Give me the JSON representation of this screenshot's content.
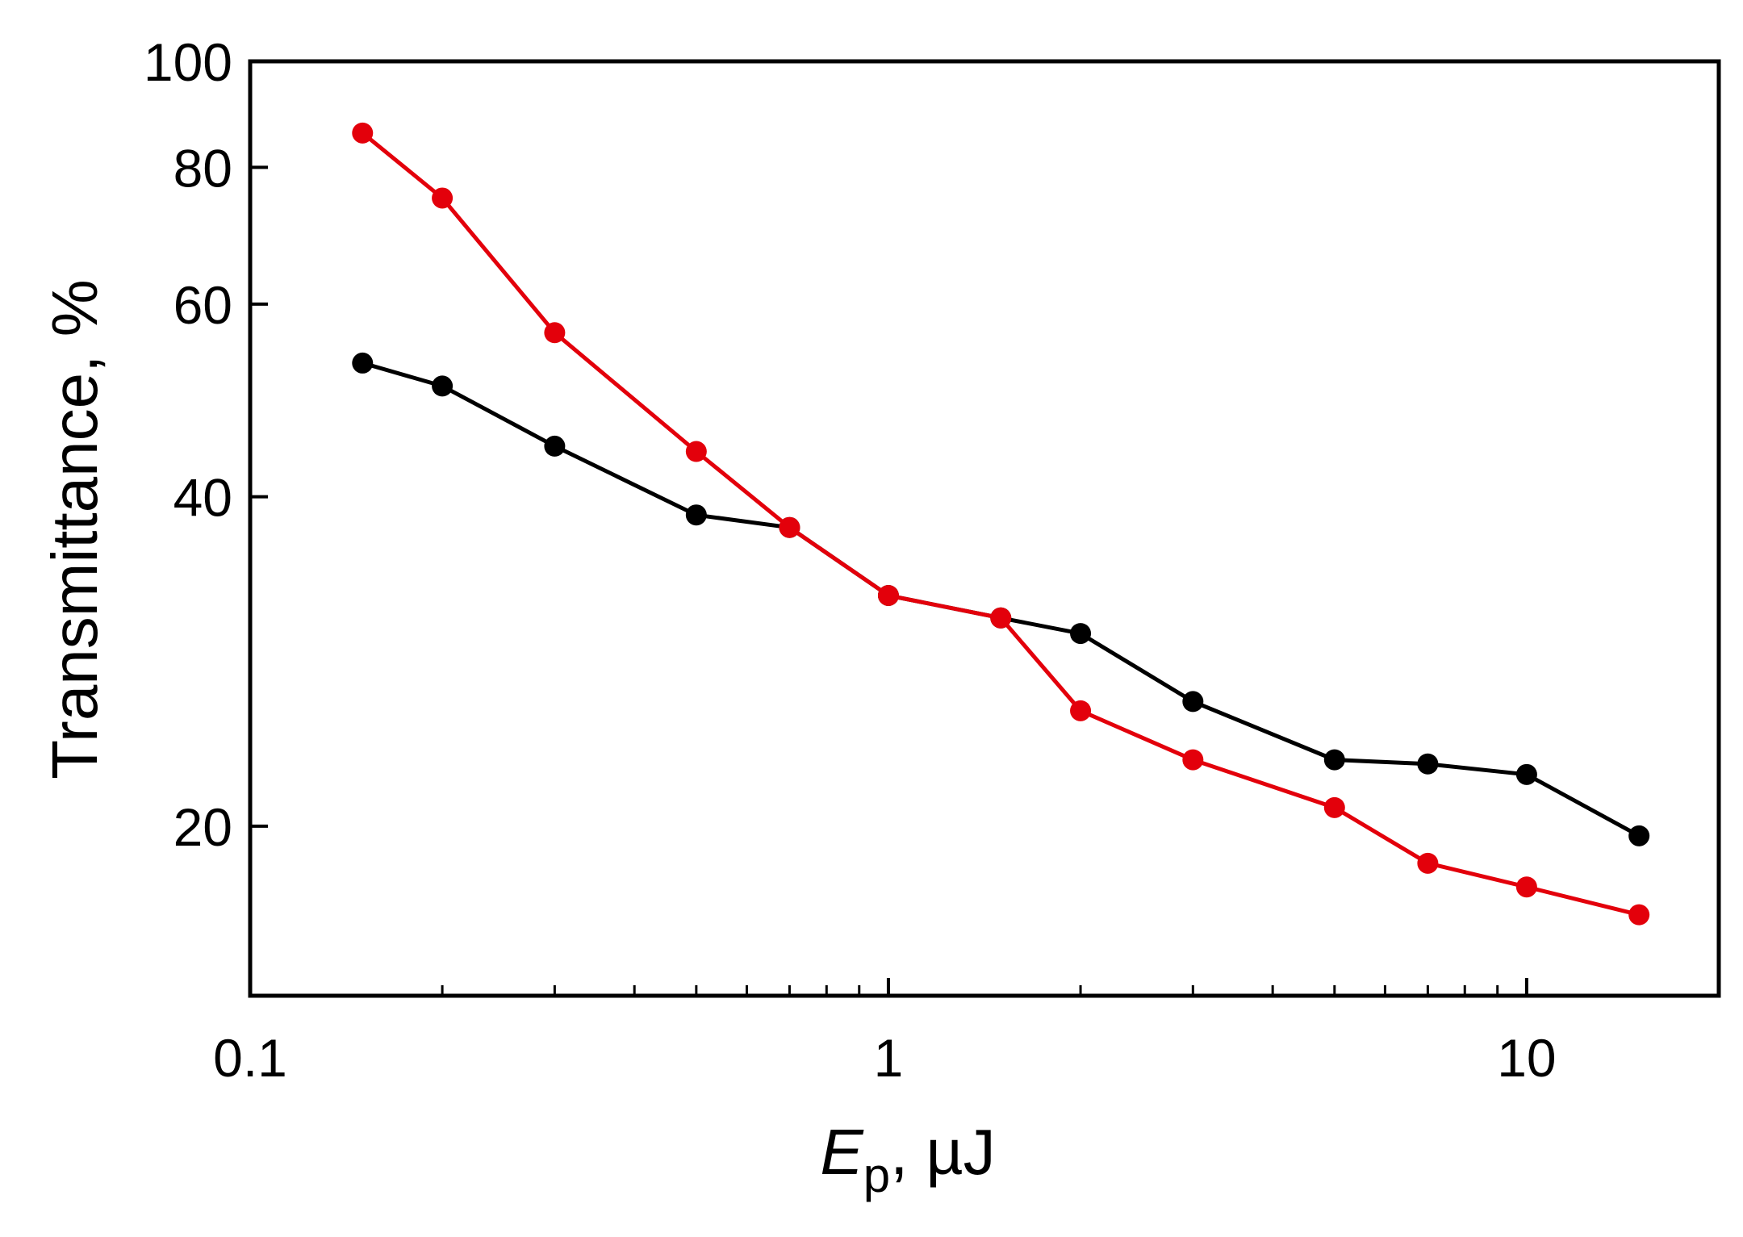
{
  "chart_data": {
    "type": "line",
    "title": "",
    "xlabel": {
      "symbol": "E",
      "subscript": "p",
      "unit": ", µJ"
    },
    "ylabel": "Transmittance, %",
    "xscale": "log",
    "yscale": "log",
    "xlim": [
      0.1,
      20
    ],
    "ylim": [
      14,
      100
    ],
    "x_ticks": [
      {
        "value": 0.1,
        "label": "0.1"
      },
      {
        "value": 1,
        "label": "1"
      },
      {
        "value": 10,
        "label": "10"
      }
    ],
    "y_ticks": [
      {
        "value": 20,
        "label": "20"
      },
      {
        "value": 40,
        "label": "40"
      },
      {
        "value": 60,
        "label": "60"
      },
      {
        "value": 80,
        "label": "80"
      },
      {
        "value": 100,
        "label": "100"
      }
    ],
    "grid": false,
    "legend": "none",
    "series": [
      {
        "color": "#000000",
        "x": [
          0.15,
          0.2,
          0.3,
          0.5,
          0.7,
          1,
          1.5,
          2,
          3,
          5,
          7,
          10,
          15
        ],
        "y": [
          53,
          50.5,
          44.5,
          38.5,
          37.5,
          32.5,
          31,
          30,
          26,
          23,
          22.8,
          22.3,
          19.6
        ]
      },
      {
        "color": "#e3000b",
        "x": [
          0.15,
          0.2,
          0.3,
          0.5,
          0.7,
          1,
          1.5,
          2,
          3,
          5,
          7,
          10,
          15
        ],
        "y": [
          86,
          75,
          56.5,
          44,
          37.5,
          32.5,
          31,
          25.5,
          23,
          20.8,
          18.5,
          17.6,
          16.6
        ]
      }
    ]
  }
}
